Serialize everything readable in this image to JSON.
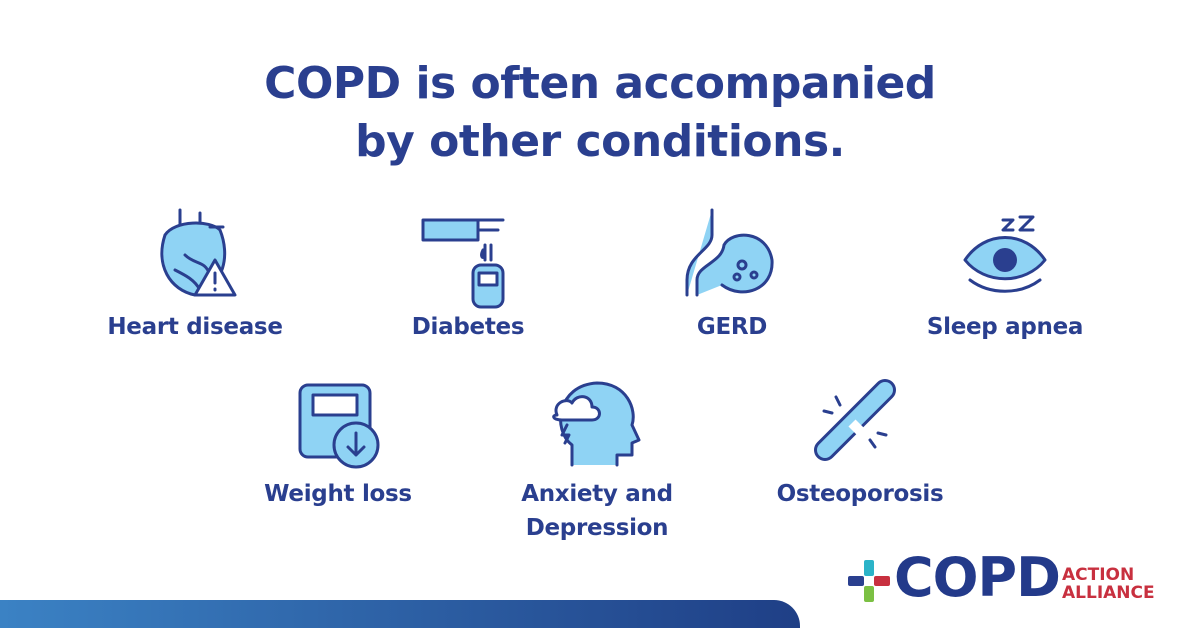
{
  "title": {
    "lines": [
      "COPD is often accompanied",
      "by other conditions."
    ]
  },
  "conditions": [
    {
      "label": "Heart disease"
    },
    {
      "label": "Diabetes"
    },
    {
      "label": "GERD"
    },
    {
      "label": "Sleep apnea"
    },
    {
      "label": "Weight loss"
    },
    {
      "label": "Anxiety and Depression"
    },
    {
      "label": "Osteoporosis"
    }
  ],
  "logo": {
    "name": "COPD",
    "line1": "ACTION",
    "line2": "ALLIANCE"
  }
}
